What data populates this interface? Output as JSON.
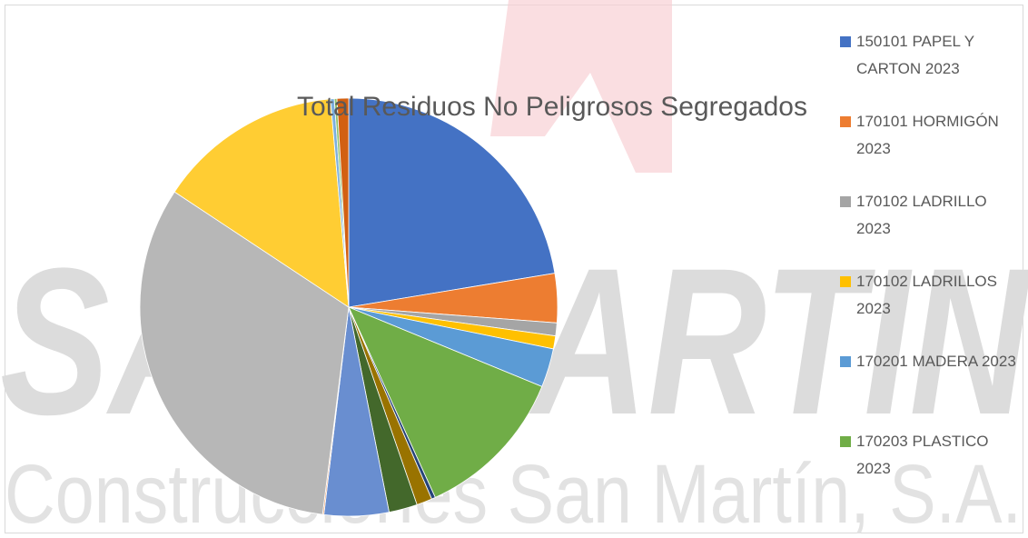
{
  "chart_data": {
    "type": "pie",
    "title": "Total Residuos No Peligrosos Segregados",
    "watermark": [
      "SAN MARTIN",
      "Construcciones San Martín, S.A."
    ],
    "categories": [
      "150101 PAPEL Y CARTON 2023",
      "170101 HORMIGÓN 2023",
      "170102 LADRILLO 2023",
      "170102 LADRILLOS 2023",
      "170201 MADERA 2023",
      "170203 PLASTICO 2023",
      null,
      null,
      null,
      null,
      null,
      null,
      null,
      null,
      null,
      null
    ],
    "values": [
      22.4,
      3.8,
      1,
      1,
      3,
      12,
      0.3,
      1.2,
      2.2,
      5,
      0.1,
      32.3,
      14.3,
      0.3,
      0.2,
      0.9
    ],
    "colors": [
      "#4472c4",
      "#ed7d31",
      "#a5a5a5",
      "#ffc000",
      "#5b9bd5",
      "#70ad47",
      "#264478",
      "#997300",
      "#43682b",
      "#698ed0",
      "#f1975a",
      "#b7b7b7",
      "#ffcd33",
      "#7cafdd",
      "#8cc168",
      "#d26012"
    ],
    "legend": "right"
  }
}
